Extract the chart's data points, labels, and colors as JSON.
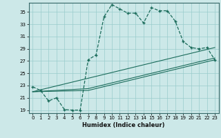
{
  "xlabel": "Humidex (Indice chaleur)",
  "bg_color": "#cce8e8",
  "grid_color": "#99cccc",
  "line_color": "#1a6b5a",
  "xlim": [
    -0.5,
    23.5
  ],
  "ylim": [
    18.5,
    36.5
  ],
  "xticks": [
    0,
    1,
    2,
    3,
    4,
    5,
    6,
    7,
    8,
    9,
    10,
    11,
    12,
    13,
    14,
    15,
    16,
    17,
    18,
    19,
    20,
    21,
    22,
    23
  ],
  "yticks": [
    19,
    21,
    23,
    25,
    27,
    29,
    31,
    33,
    35
  ],
  "curve_main": {
    "x": [
      0,
      1,
      2,
      3,
      4,
      5,
      6,
      7,
      8,
      9,
      10,
      11,
      12,
      13,
      14,
      15,
      16,
      17,
      18,
      19,
      20,
      21,
      22,
      23
    ],
    "y": [
      22.8,
      22.2,
      20.5,
      21.0,
      19.1,
      19.0,
      19.0,
      27.2,
      28.0,
      34.2,
      36.2,
      35.5,
      34.8,
      34.8,
      33.2,
      35.7,
      35.2,
      35.2,
      33.5,
      30.2,
      29.2,
      29.0,
      29.2,
      27.2
    ]
  },
  "curve_line1": {
    "x": [
      0,
      23
    ],
    "y": [
      22.0,
      29.2
    ]
  },
  "curve_line2": {
    "x": [
      0,
      7,
      23
    ],
    "y": [
      22.0,
      22.5,
      27.5
    ]
  },
  "curve_line3": {
    "x": [
      0,
      7,
      23
    ],
    "y": [
      22.0,
      22.2,
      27.2
    ]
  }
}
